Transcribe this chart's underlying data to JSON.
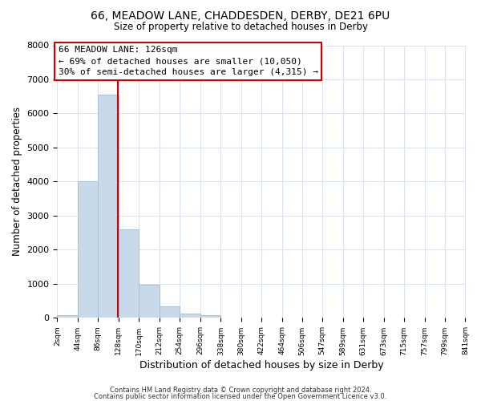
{
  "title": "66, MEADOW LANE, CHADDESDEN, DERBY, DE21 6PU",
  "subtitle": "Size of property relative to detached houses in Derby",
  "xlabel": "Distribution of detached houses by size in Derby",
  "ylabel": "Number of detached properties",
  "bin_edges": [
    2,
    44,
    86,
    128,
    170,
    212,
    254,
    296,
    338,
    380,
    422,
    464,
    506,
    547,
    589,
    631,
    673,
    715,
    757,
    799,
    841
  ],
  "bar_heights": [
    75,
    4000,
    6550,
    2600,
    980,
    330,
    140,
    75,
    0,
    0,
    0,
    0,
    0,
    0,
    0,
    0,
    0,
    0,
    0,
    0
  ],
  "bar_color": "#c8daea",
  "bar_edge_color": "#a8c0d6",
  "property_line_x": 126,
  "property_line_color": "#cc0000",
  "annotation_line1": "66 MEADOW LANE: 126sqm",
  "annotation_line2": "← 69% of detached houses are smaller (10,050)",
  "annotation_line3": "30% of semi-detached houses are larger (4,315) →",
  "annotation_box_color": "#ffffff",
  "annotation_box_edge": "#cc0000",
  "ylim": [
    0,
    8000
  ],
  "background_color": "#ffffff",
  "plot_bg_color": "#ffffff",
  "grid_color": "#d8e4f0",
  "footer_line1": "Contains HM Land Registry data © Crown copyright and database right 2024.",
  "footer_line2": "Contains public sector information licensed under the Open Government Licence v3.0.",
  "tick_labels": [
    "2sqm",
    "44sqm",
    "86sqm",
    "128sqm",
    "170sqm",
    "212sqm",
    "254sqm",
    "296sqm",
    "338sqm",
    "380sqm",
    "422sqm",
    "464sqm",
    "506sqm",
    "547sqm",
    "589sqm",
    "631sqm",
    "673sqm",
    "715sqm",
    "757sqm",
    "799sqm",
    "841sqm"
  ],
  "yticks": [
    0,
    1000,
    2000,
    3000,
    4000,
    5000,
    6000,
    7000,
    8000
  ]
}
